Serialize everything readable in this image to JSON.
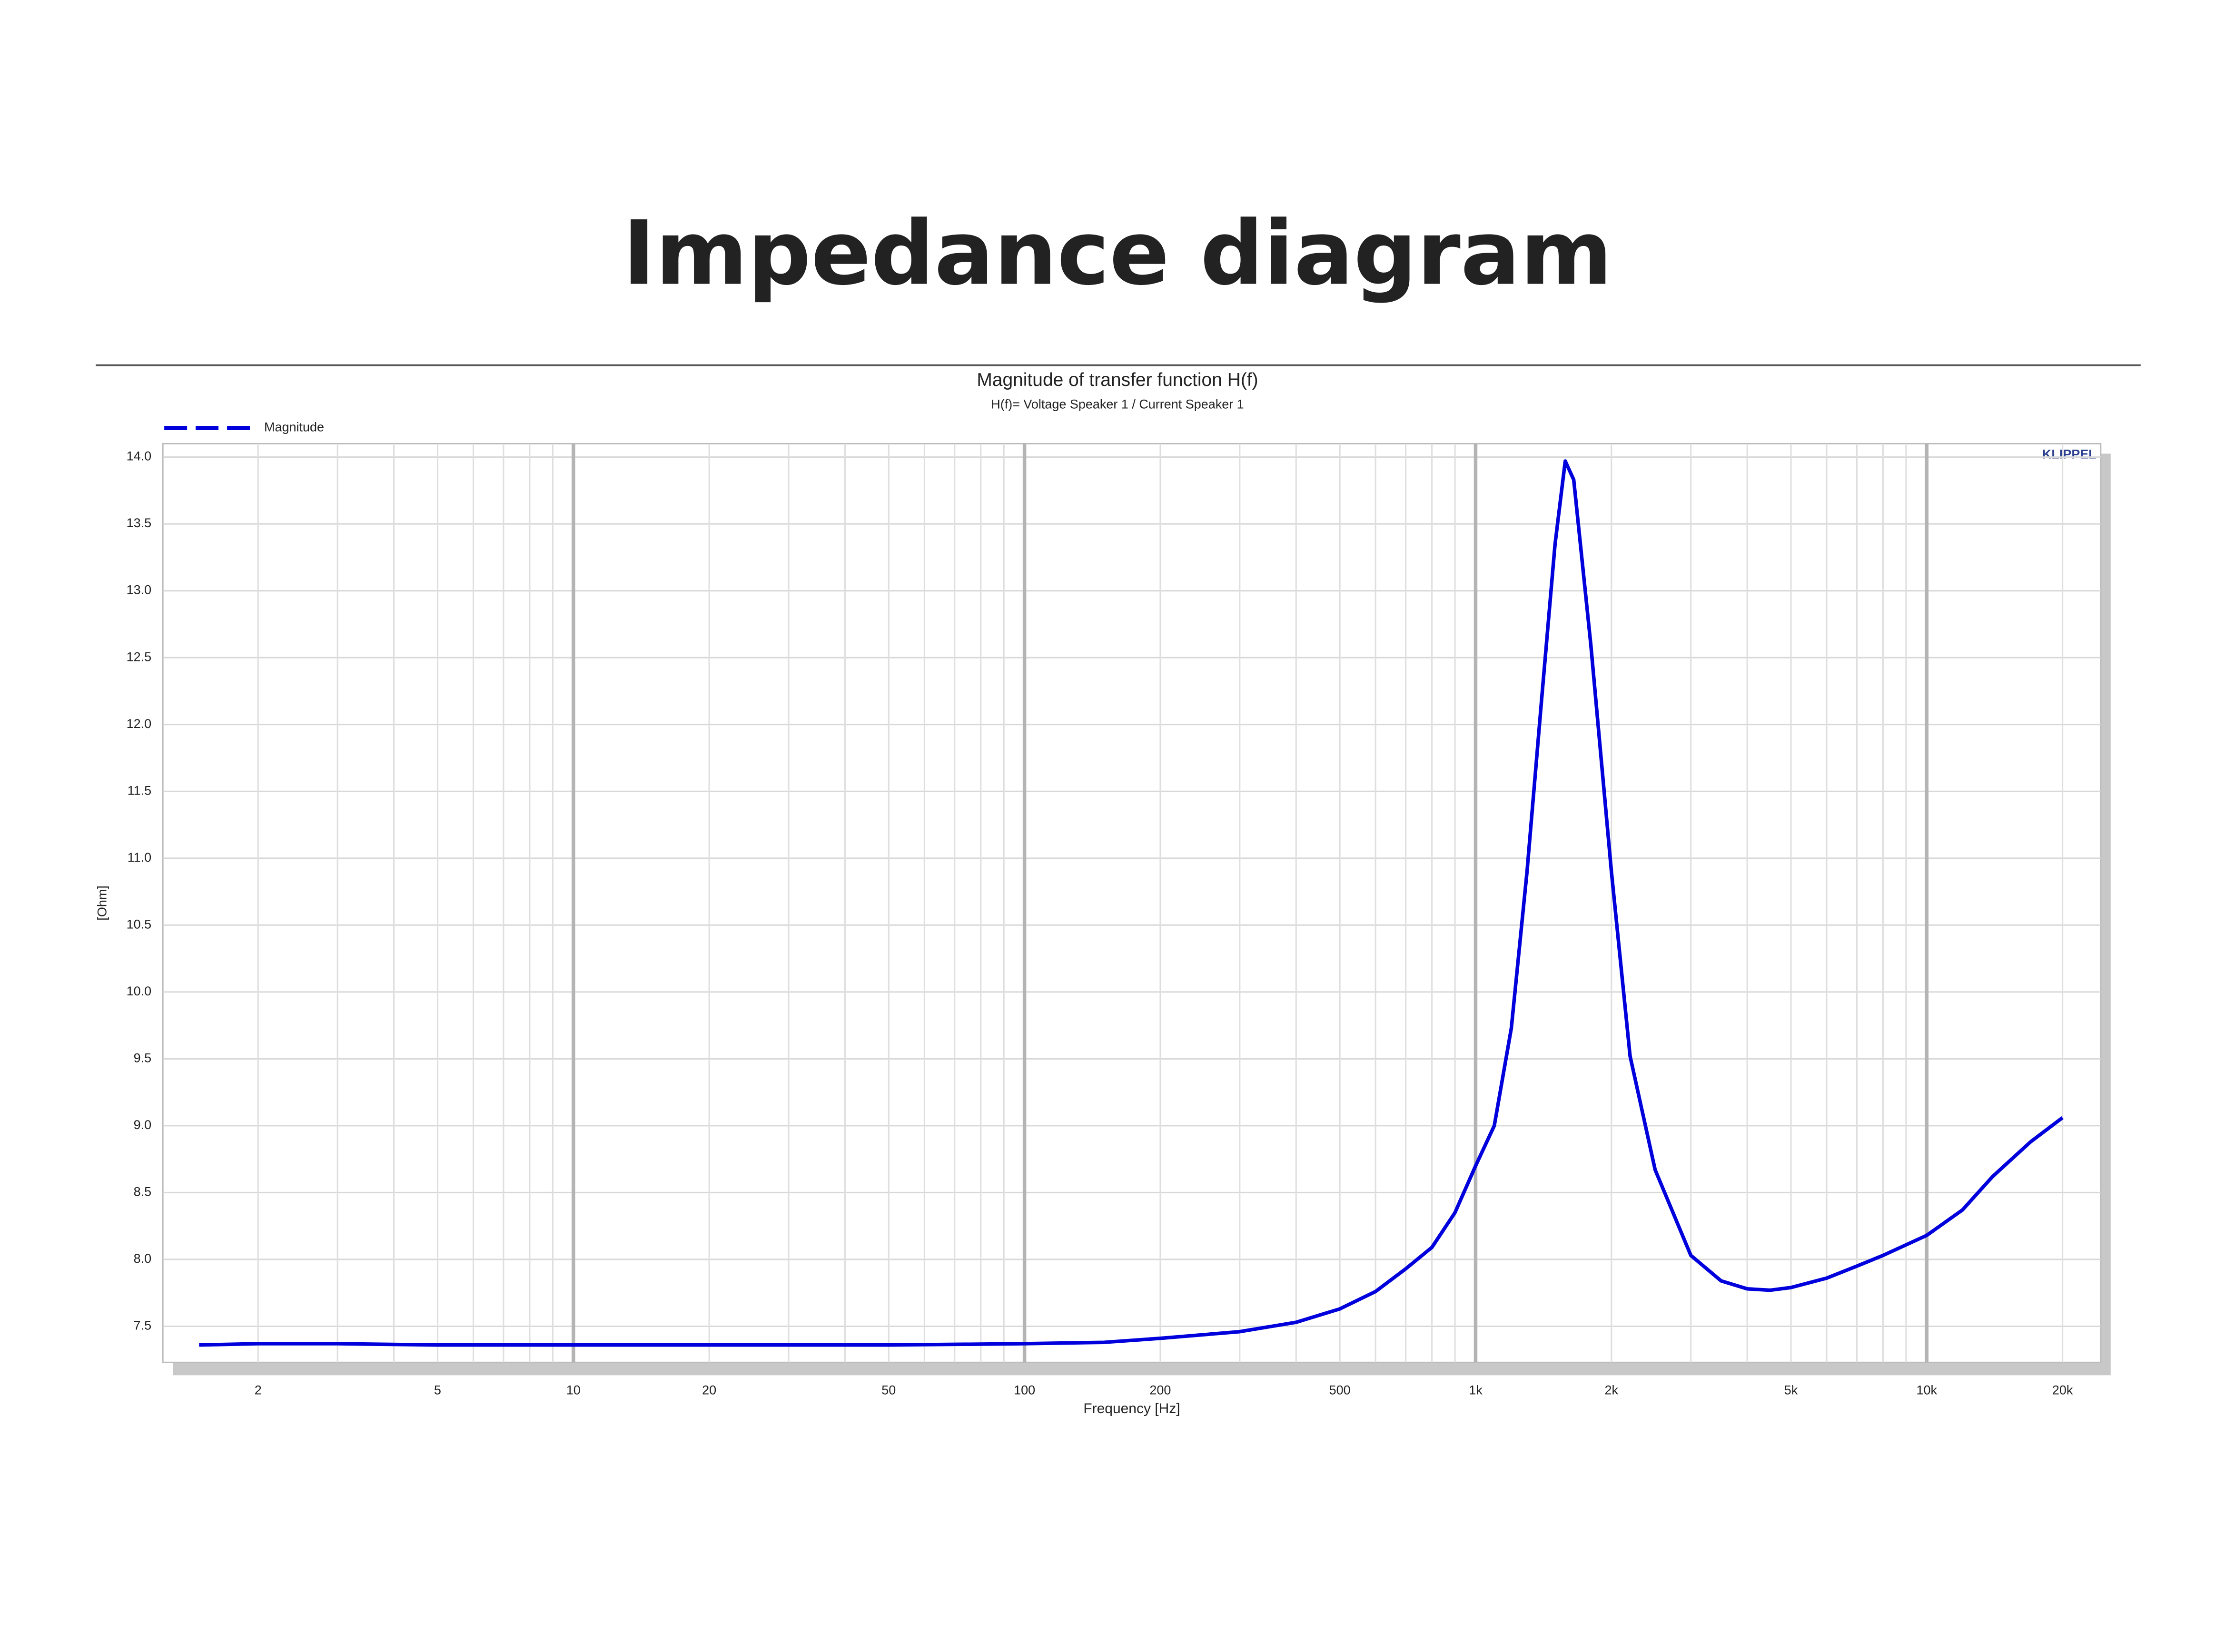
{
  "title": "Impedance diagram",
  "chart_data": {
    "type": "line",
    "title": "Magnitude of transfer function H(f)",
    "subtitle": "H(f)= Voltage Speaker 1 / Current Speaker 1",
    "xlabel": "Frequency [Hz]",
    "ylabel": "[Ohm]",
    "annotation": "KLIPPEL",
    "xscale": "log",
    "grid": true,
    "legend": "top-left",
    "x": [
      1.48,
      2,
      3,
      5,
      10,
      20,
      50,
      100,
      150,
      200,
      300,
      400,
      500,
      600,
      700,
      800,
      900,
      1000,
      1100,
      1200,
      1300,
      1400,
      1500,
      1580,
      1650,
      1800,
      2000,
      2200,
      2500,
      3000,
      3500,
      4000,
      4500,
      5000,
      6000,
      7000,
      8000,
      10000,
      12000,
      14000,
      17000,
      20000
    ],
    "series": [
      {
        "name": "Magnitude",
        "color": "#0000dd",
        "values": [
          7.36,
          7.37,
          7.37,
          7.36,
          7.36,
          7.36,
          7.36,
          7.37,
          7.38,
          7.41,
          7.46,
          7.53,
          7.63,
          7.76,
          7.93,
          8.09,
          8.35,
          8.7,
          9.0,
          9.73,
          10.9,
          12.18,
          13.35,
          13.97,
          13.83,
          12.6,
          10.9,
          9.52,
          8.67,
          8.03,
          7.84,
          7.78,
          7.77,
          7.79,
          7.86,
          7.95,
          8.03,
          8.18,
          8.37,
          8.62,
          8.88,
          9.06
        ]
      }
    ],
    "xlim": [
      1.23,
      24300
    ],
    "ylim": [
      7.23,
      14.1
    ],
    "xticks": [
      2,
      5,
      10,
      20,
      50,
      100,
      200,
      500,
      {
        "value": 1000,
        "label": "1k"
      },
      {
        "value": 2000,
        "label": "2k"
      },
      {
        "value": 5000,
        "label": "5k"
      },
      {
        "value": 10000,
        "label": "10k"
      },
      {
        "value": 20000,
        "label": "20k"
      }
    ],
    "xminorticks": [
      3,
      4,
      6,
      7,
      8,
      9,
      30,
      40,
      60,
      70,
      80,
      90,
      300,
      400,
      600,
      700,
      800,
      900,
      3000,
      4000,
      6000,
      7000,
      8000,
      9000
    ],
    "yticks": [
      7.5,
      {
        "value": 8,
        "label": "8.0"
      },
      8.5,
      {
        "value": 9,
        "label": "9.0"
      },
      9.5,
      {
        "value": 10,
        "label": "10.0"
      },
      10.5,
      {
        "value": 11,
        "label": "11.0"
      },
      11.5,
      {
        "value": 12,
        "label": "12.0"
      },
      12.5,
      {
        "value": 13,
        "label": "13.0"
      },
      13.5,
      {
        "value": 14,
        "label": "14.0"
      }
    ]
  }
}
